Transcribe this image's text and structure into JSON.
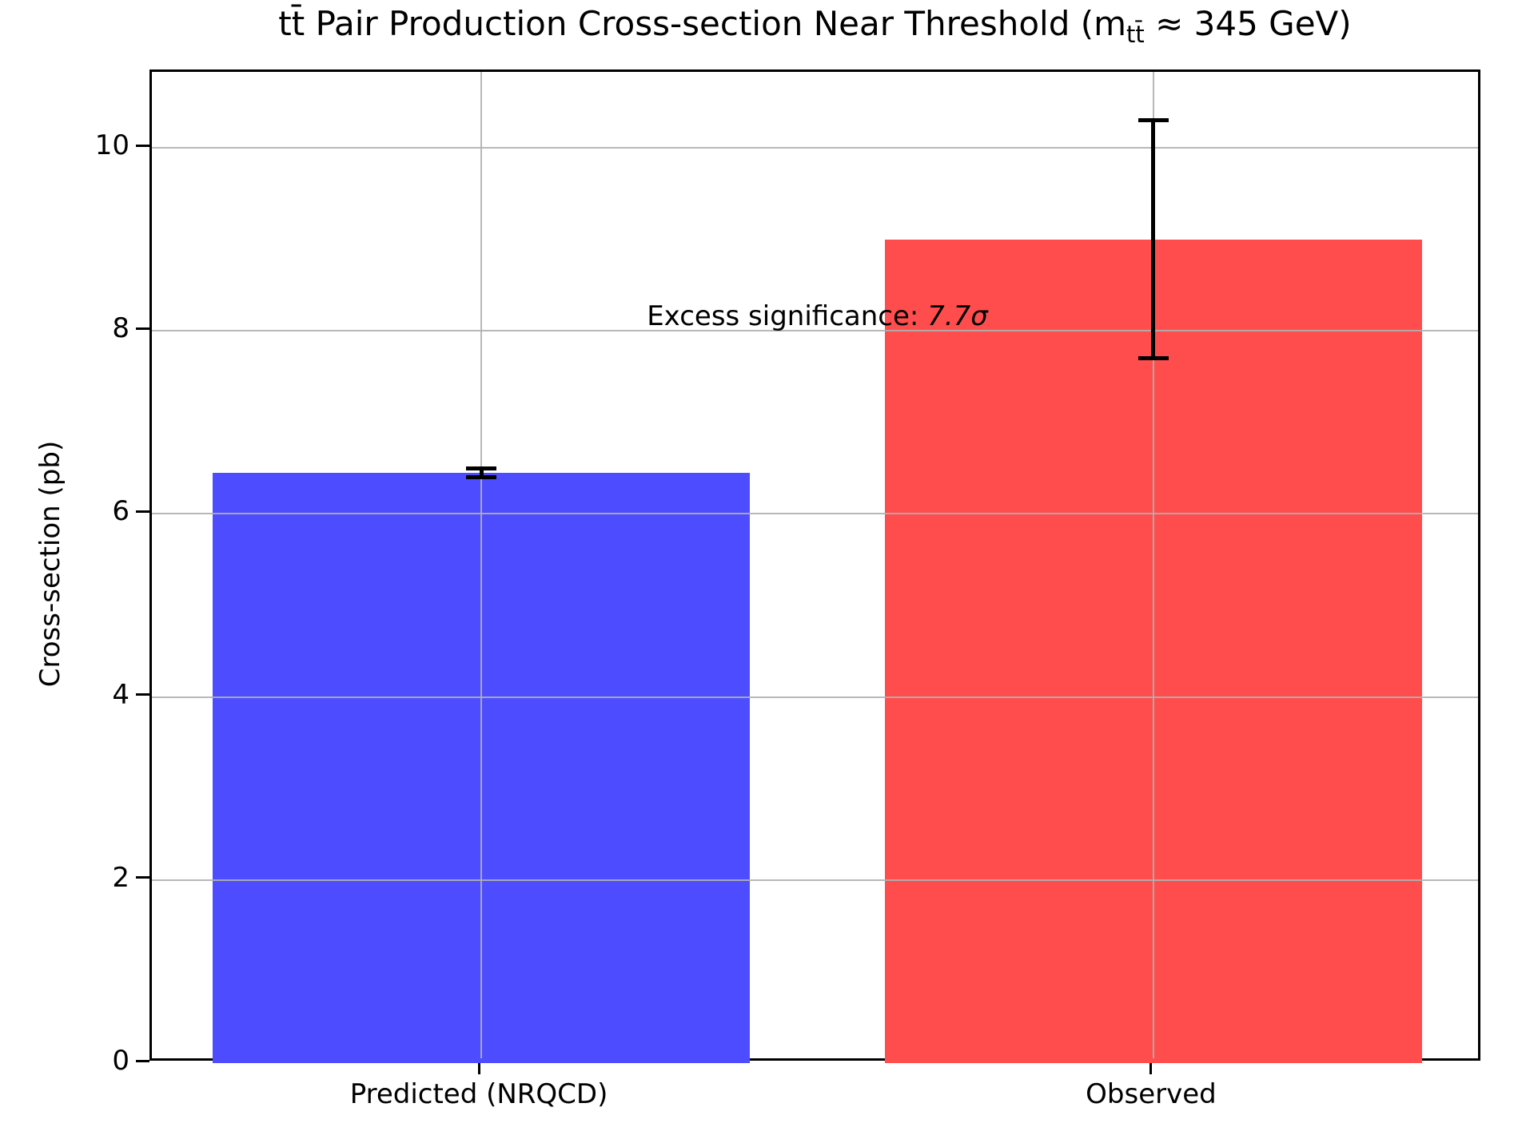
{
  "figure": {
    "title": {
      "part1": "tt̄ Pair Production Cross-section Near Threshold (m",
      "sub": "tt̄",
      "part2": " ≈ 345 GeV)"
    },
    "ylabel": "Cross-section (pb)",
    "annotation": {
      "label": "Excess significance: ",
      "value": "7.7σ"
    }
  },
  "chart_data": {
    "type": "bar",
    "title": "tt̄ Pair Production Cross-section Near Threshold (m_tt̄ ≈ 345 GeV)",
    "xlabel": "",
    "ylabel": "Cross-section (pb)",
    "categories": [
      "Predicted (NRQCD)",
      "Observed"
    ],
    "values": [
      6.45,
      9.0
    ],
    "errors": [
      0.05,
      1.3
    ],
    "bar_colors": [
      "#4d4dff",
      "#ff4d4d"
    ],
    "error_color": "#000000",
    "yticks": [
      0,
      2,
      4,
      6,
      8,
      10
    ],
    "ylim": [
      0,
      10.83
    ],
    "grid": true,
    "grid_color": "#b0b0b0",
    "legend": "none",
    "annotation": "Excess significance: 7.7σ",
    "annotation_xy": [
      0.5,
      8.16
    ]
  }
}
